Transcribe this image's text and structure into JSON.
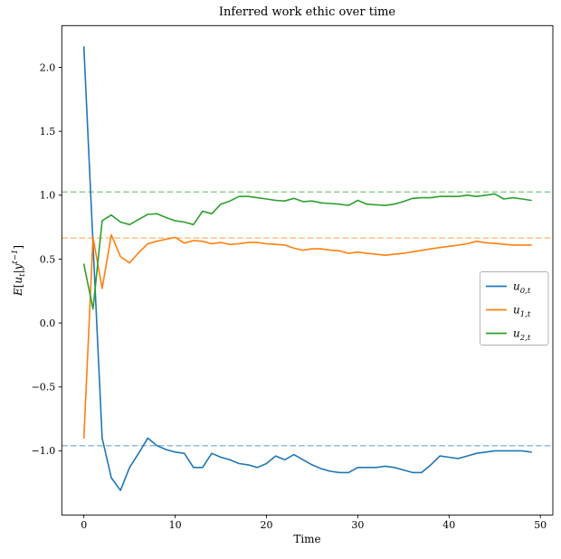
{
  "chart_data": {
    "type": "line",
    "title": "Inferred work ethic over time",
    "xlabel": "Time",
    "ylabel": "E[u_t|y^{t-1}]",
    "ylabel_parts": {
      "e": "E",
      "lb": "[",
      "u": "u",
      "sub": "t",
      "bar": "|",
      "y": "y",
      "sup": "t−1",
      "rb": "]"
    },
    "x_ticks": [
      0,
      10,
      20,
      30,
      40,
      50
    ],
    "y_ticks": [
      2.0,
      1.5,
      1.0,
      0.5,
      0.0,
      -0.5,
      -1.0
    ],
    "y_tick_labels": [
      "2.0",
      "1.5",
      "1.0",
      "0.5",
      "0.0",
      "−0.5",
      "−1.0"
    ],
    "xlim": [
      -2.45,
      51.45
    ],
    "ylim": [
      -1.5,
      2.33
    ],
    "grid": false,
    "background": "#ffffff",
    "x": [
      0,
      1,
      2,
      3,
      4,
      5,
      6,
      7,
      8,
      9,
      10,
      11,
      12,
      13,
      14,
      15,
      16,
      17,
      18,
      19,
      20,
      21,
      22,
      23,
      24,
      25,
      26,
      27,
      28,
      29,
      30,
      31,
      32,
      33,
      34,
      35,
      36,
      37,
      38,
      39,
      40,
      41,
      42,
      43,
      44,
      45,
      46,
      47,
      48,
      49
    ],
    "series": [
      {
        "name": "u_{0,t}",
        "color": "#1f77b4",
        "values": [
          2.16,
          0.62,
          -0.9,
          -1.21,
          -1.31,
          -1.13,
          -1.02,
          -0.9,
          -0.96,
          -0.99,
          -1.01,
          -1.02,
          -1.13,
          -1.13,
          -1.02,
          -1.05,
          -1.07,
          -1.1,
          -1.11,
          -1.13,
          -1.1,
          -1.04,
          -1.07,
          -1.03,
          -1.07,
          -1.11,
          -1.14,
          -1.16,
          -1.17,
          -1.17,
          -1.13,
          -1.13,
          -1.13,
          -1.12,
          -1.13,
          -1.15,
          -1.17,
          -1.17,
          -1.11,
          -1.04,
          -1.05,
          -1.06,
          -1.04,
          -1.02,
          -1.01,
          -1.0,
          -1.0,
          -1.0,
          -1.0,
          -1.01
        ]
      },
      {
        "name": "u_{1,t}",
        "color": "#ff7f0e",
        "values": [
          -0.9,
          0.67,
          0.27,
          0.69,
          0.52,
          0.47,
          0.55,
          0.62,
          0.64,
          0.655,
          0.67,
          0.625,
          0.645,
          0.64,
          0.62,
          0.63,
          0.615,
          0.62,
          0.63,
          0.63,
          0.62,
          0.615,
          0.61,
          0.585,
          0.57,
          0.58,
          0.58,
          0.57,
          0.565,
          0.545,
          0.555,
          0.545,
          0.538,
          0.53,
          0.538,
          0.545,
          0.557,
          0.568,
          0.58,
          0.59,
          0.6,
          0.61,
          0.62,
          0.64,
          0.628,
          0.623,
          0.616,
          0.61,
          0.61,
          0.61
        ]
      },
      {
        "name": "u_{2,t}",
        "color": "#2ca02c",
        "values": [
          0.46,
          0.11,
          0.8,
          0.845,
          0.79,
          0.77,
          0.81,
          0.85,
          0.855,
          0.825,
          0.8,
          0.79,
          0.77,
          0.875,
          0.855,
          0.93,
          0.955,
          0.99,
          0.99,
          0.98,
          0.97,
          0.96,
          0.955,
          0.975,
          0.95,
          0.955,
          0.94,
          0.935,
          0.93,
          0.92,
          0.96,
          0.93,
          0.925,
          0.92,
          0.93,
          0.95,
          0.975,
          0.98,
          0.98,
          0.99,
          0.99,
          0.99,
          1.0,
          0.99,
          1.0,
          1.01,
          0.97,
          0.98,
          0.97,
          0.96
        ]
      }
    ],
    "reference_lines": [
      {
        "series": "u_{0,t}",
        "value": -0.96,
        "style": "dashed",
        "color": "#1f77b4",
        "opacity": 0.5
      },
      {
        "series": "u_{1,t}",
        "value": 0.665,
        "style": "dashed",
        "color": "#ff7f0e",
        "opacity": 0.5
      },
      {
        "series": "u_{2,t}",
        "value": 1.025,
        "style": "dashed",
        "color": "#2ca02c",
        "opacity": 0.5
      }
    ],
    "legend": {
      "position": "center-right",
      "entries": [
        {
          "base": "u",
          "sub": "0,t",
          "color": "#1f77b4"
        },
        {
          "base": "u",
          "sub": "1,t",
          "color": "#ff7f0e"
        },
        {
          "base": "u",
          "sub": "2,t",
          "color": "#2ca02c"
        }
      ]
    }
  }
}
